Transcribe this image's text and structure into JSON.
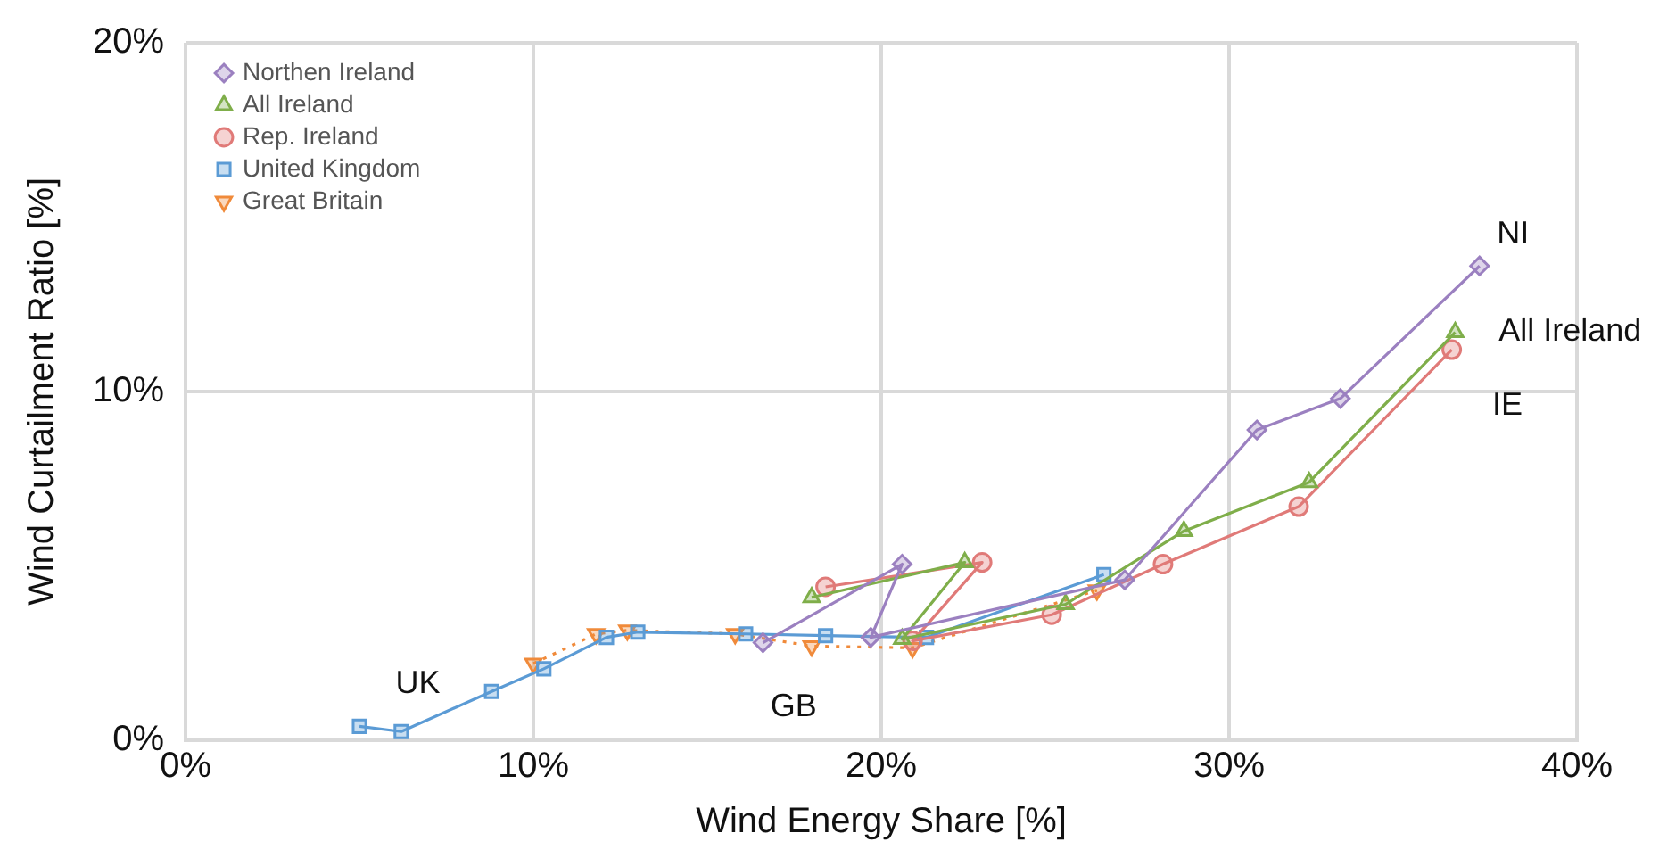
{
  "chart_data": {
    "type": "line",
    "xlabel": "Wind Energy Share [%]",
    "ylabel": "Wind Curtailment Ratio [%]",
    "xlim": [
      0,
      40
    ],
    "xticks": [
      {
        "value": 0,
        "label": "0%"
      },
      {
        "value": 10,
        "label": "10%"
      },
      {
        "value": 20,
        "label": "20%"
      },
      {
        "value": 30,
        "label": "30%"
      },
      {
        "value": 40,
        "label": "40%"
      }
    ],
    "ylim": [
      0,
      20
    ],
    "yticks": [
      {
        "value": 0,
        "label": "0%"
      },
      {
        "value": 10,
        "label": "10%"
      },
      {
        "value": 20,
        "label": "20%"
      }
    ],
    "grid": true,
    "legend": "top left",
    "series": [
      {
        "name": "Northen Ireland",
        "color": "#9b80c0",
        "marker": "diamond",
        "line_style": "solid",
        "x": [
          16.6,
          20.6,
          19.7,
          27.0,
          30.8,
          33.2,
          37.2
        ],
        "values": [
          2.8,
          5.05,
          2.95,
          4.6,
          8.9,
          9.8,
          13.6
        ]
      },
      {
        "name": "All Ireland",
        "color": "#7fae4a",
        "marker": "triangle",
        "line_style": "solid",
        "x": [
          18.0,
          22.4,
          20.6,
          25.3,
          28.7,
          32.3,
          36.5
        ],
        "values": [
          4.1,
          5.1,
          2.9,
          3.9,
          6.0,
          7.4,
          11.7
        ]
      },
      {
        "name": "Rep. Ireland",
        "color": "#e07a78",
        "marker": "circle",
        "line_style": "solid",
        "x": [
          18.4,
          22.9,
          20.9,
          24.9,
          28.1,
          32.0,
          36.4
        ],
        "values": [
          4.4,
          5.1,
          2.85,
          3.6,
          5.05,
          6.7,
          11.2
        ]
      },
      {
        "name": "United Kingdom",
        "color": "#5b9bd5",
        "marker": "square",
        "line_style": "solid",
        "x": [
          5.0,
          6.2,
          8.8,
          10.3,
          12.1,
          13.0,
          16.1,
          18.4,
          21.3,
          26.4
        ],
        "values": [
          0.4,
          0.25,
          1.4,
          2.05,
          2.95,
          3.1,
          3.05,
          3.0,
          2.95,
          4.75
        ]
      },
      {
        "name": "Great Britain",
        "color": "#f08a3a",
        "marker": "triangle_down",
        "line_style": "dotted",
        "x": [
          10.0,
          11.8,
          12.7,
          15.8,
          18.0,
          20.9,
          26.2
        ],
        "values": [
          2.2,
          3.05,
          3.15,
          3.05,
          2.7,
          2.65,
          4.3
        ]
      }
    ],
    "annotations": [
      "NI",
      "All Ireland",
      "IE",
      "UK",
      "GB"
    ]
  }
}
